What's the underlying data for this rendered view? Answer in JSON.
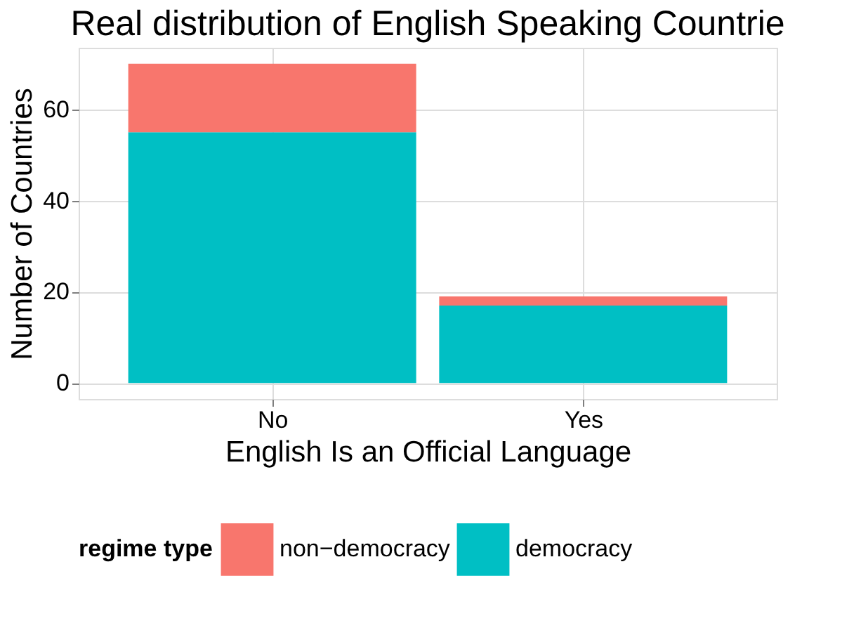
{
  "chart_data": {
    "type": "bar",
    "title": "Real distribution of English Speaking Countrie",
    "xlabel": "English Is an Official Language",
    "ylabel": "Number of Countries",
    "legend_title": "regime type",
    "categories": [
      "No",
      "Yes"
    ],
    "stacked": true,
    "series": [
      {
        "name": "democracy",
        "color": "#00bfc4",
        "values": [
          55,
          17
        ]
      },
      {
        "name": "non−democracy",
        "color": "#f8766d",
        "values": [
          15,
          2
        ]
      }
    ],
    "ylim": [
      -3.5,
      73.5
    ],
    "yticks": [
      0,
      20,
      40,
      60
    ],
    "grid": true,
    "legend": "bottom"
  }
}
